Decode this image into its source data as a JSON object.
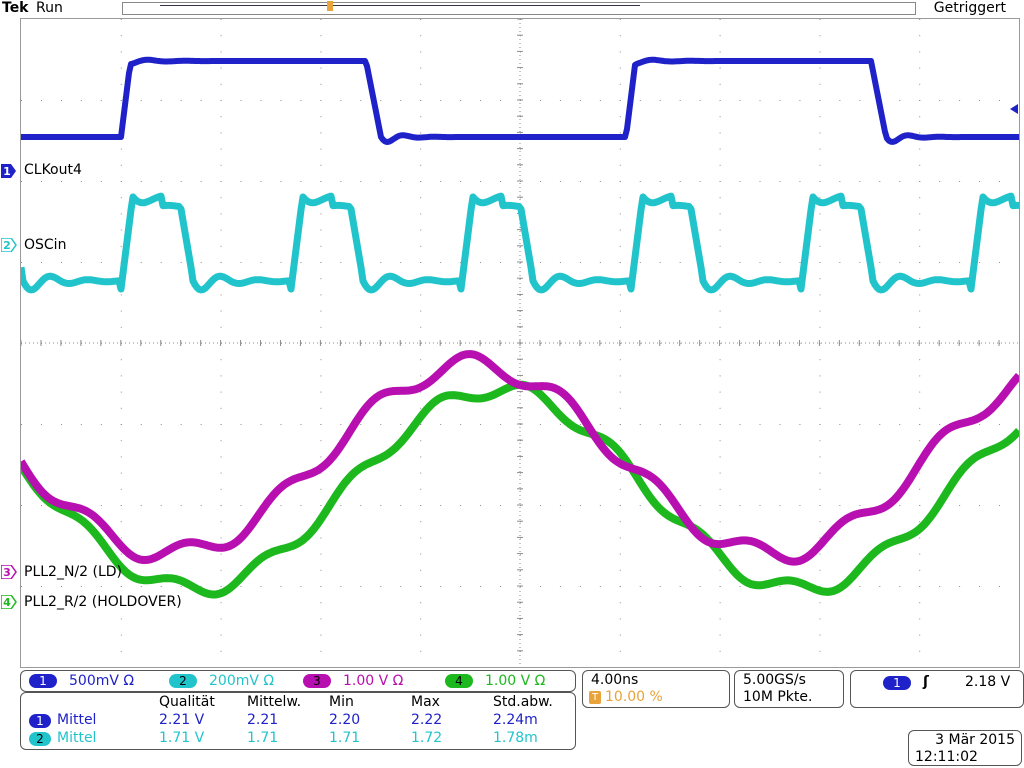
{
  "header": {
    "brand": "Tek",
    "status": "Run",
    "trigger_state": "Getriggert"
  },
  "trigger_marker": "T",
  "channels": [
    {
      "num": "1",
      "label": "CLKout4",
      "color": "#1f22c8"
    },
    {
      "num": "2",
      "label": "OSCin",
      "color": "#22c4cc"
    },
    {
      "num": "3",
      "label": "PLL2_N/2 (LD)",
      "color": "#b80fb0"
    },
    {
      "num": "4",
      "label": "PLL2_R/2 (HOLDOVER)",
      "color": "#1db81d"
    }
  ],
  "vertical": [
    {
      "num": "1",
      "scale": "500mV",
      "unit": "Ω",
      "color": "#1f22c8"
    },
    {
      "num": "2",
      "scale": "200mV",
      "unit": "Ω",
      "color": "#22c4cc"
    },
    {
      "num": "3",
      "scale": "1.00 V",
      "unit": "Ω",
      "color": "#b80fb0"
    },
    {
      "num": "4",
      "scale": "1.00 V",
      "unit": "Ω",
      "color": "#1db81d"
    }
  ],
  "horizontal": {
    "timebase": "4.00ns",
    "trigger_pos": "10.00 %",
    "trig_marker": "T"
  },
  "acquisition": {
    "sample_rate": "5.00GS/s",
    "record_length": "10M Pkte."
  },
  "trigger": {
    "source": "1",
    "slope": "ʃ",
    "level": "2.18 V"
  },
  "measurements": {
    "headers": [
      "Qualität",
      "Mittelw.",
      "Min",
      "Max",
      "Std.abw."
    ],
    "rows": [
      {
        "ch": "1",
        "type": "Mittel",
        "values": [
          "2.21 V",
          "2.21",
          "2.20",
          "2.22",
          "2.24m"
        ],
        "color": "#1f22c8"
      },
      {
        "ch": "2",
        "type": "Mittel",
        "values": [
          "1.71 V",
          "1.71",
          "1.71",
          "1.72",
          "1.78m"
        ],
        "color": "#22c4cc"
      }
    ]
  },
  "datetime": {
    "date": "3 Mär  2015",
    "time": "12:11:02"
  }
}
